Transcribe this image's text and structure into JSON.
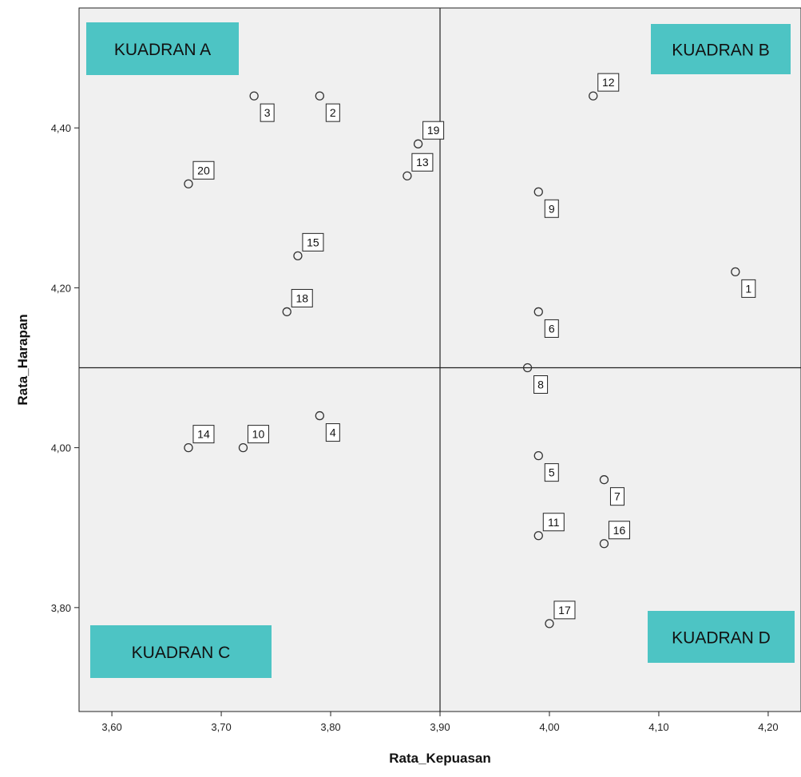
{
  "chart_data": {
    "type": "scatter",
    "xlabel": "Rata_Kepuasan",
    "ylabel": "Rata_Harapan",
    "xlim": [
      3.57,
      4.23
    ],
    "ylim": [
      3.67,
      4.55
    ],
    "xticks": [
      3.6,
      3.7,
      3.8,
      3.9,
      4.0,
      4.1,
      4.2
    ],
    "xtick_labels": [
      "3,60",
      "3,70",
      "3,80",
      "3,90",
      "4,00",
      "4,10",
      "4,20"
    ],
    "yticks": [
      3.8,
      4.0,
      4.2,
      4.4
    ],
    "ytick_labels": [
      "3,80",
      "4,00",
      "4,20",
      "4,40"
    ],
    "reference_lines": {
      "x": 3.9,
      "y": 4.1
    },
    "points": [
      {
        "label": "1",
        "x": 4.17,
        "y": 4.22,
        "label_pos": "below-right"
      },
      {
        "label": "2",
        "x": 3.79,
        "y": 4.44,
        "label_pos": "below-right"
      },
      {
        "label": "3",
        "x": 3.73,
        "y": 4.44,
        "label_pos": "below-right"
      },
      {
        "label": "4",
        "x": 3.79,
        "y": 4.04,
        "label_pos": "below-right"
      },
      {
        "label": "5",
        "x": 3.99,
        "y": 3.99,
        "label_pos": "below-right"
      },
      {
        "label": "6",
        "x": 3.99,
        "y": 4.17,
        "label_pos": "below-right"
      },
      {
        "label": "7",
        "x": 4.05,
        "y": 3.96,
        "label_pos": "below-right"
      },
      {
        "label": "8",
        "x": 3.98,
        "y": 4.1,
        "label_pos": "below-right"
      },
      {
        "label": "9",
        "x": 3.99,
        "y": 4.32,
        "label_pos": "below-right"
      },
      {
        "label": "10",
        "x": 3.72,
        "y": 4.0,
        "label_pos": "above-right"
      },
      {
        "label": "11",
        "x": 3.99,
        "y": 3.89,
        "label_pos": "above-right"
      },
      {
        "label": "12",
        "x": 4.04,
        "y": 4.44,
        "label_pos": "above-right"
      },
      {
        "label": "13",
        "x": 3.87,
        "y": 4.34,
        "label_pos": "above-right"
      },
      {
        "label": "14",
        "x": 3.67,
        "y": 4.0,
        "label_pos": "above-right"
      },
      {
        "label": "15",
        "x": 3.77,
        "y": 4.24,
        "label_pos": "above-right"
      },
      {
        "label": "16",
        "x": 4.05,
        "y": 3.88,
        "label_pos": "above-right"
      },
      {
        "label": "17",
        "x": 4.0,
        "y": 3.78,
        "label_pos": "above-right"
      },
      {
        "label": "18",
        "x": 3.76,
        "y": 4.17,
        "label_pos": "above-right"
      },
      {
        "label": "19",
        "x": 3.88,
        "y": 4.38,
        "label_pos": "above-right"
      },
      {
        "label": "20",
        "x": 3.67,
        "y": 4.33,
        "label_pos": "above-right"
      }
    ],
    "quadrants": [
      {
        "label": "KUADRAN A",
        "position": "top-left"
      },
      {
        "label": "KUADRAN B",
        "position": "top-right"
      },
      {
        "label": "KUADRAN C",
        "position": "bottom-left"
      },
      {
        "label": "KUADRAN D",
        "position": "bottom-right"
      }
    ],
    "colors": {
      "plot_background": "#f0f0f0",
      "quadrant_box": "#4dc4c4",
      "marker_stroke": "#333333",
      "axis": "#222222"
    }
  }
}
